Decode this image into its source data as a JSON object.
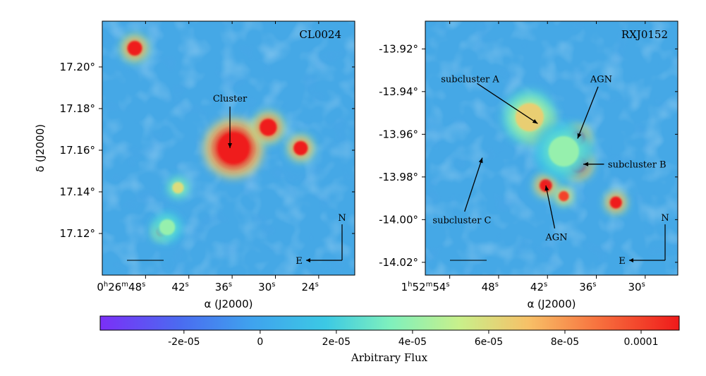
{
  "chart_data": [
    {
      "type": "heatmap",
      "label": "CL0024",
      "xlabel": "α (J2000)",
      "ylabel": "δ (J2000)",
      "xlim_sec": [
        54.0,
        19.0
      ],
      "ylim_deg": [
        17.1,
        17.222
      ],
      "x_ticks": [
        {
          "sec": 48,
          "prefix": "0",
          "h": "h",
          "mid": "26",
          "m": "m",
          "s": "48",
          "sfx": "s"
        },
        {
          "sec": 42,
          "prefix": "",
          "h": "",
          "mid": "",
          "m": "",
          "s": "42",
          "sfx": "s"
        },
        {
          "sec": 36,
          "prefix": "",
          "h": "",
          "mid": "",
          "m": "",
          "s": "36",
          "sfx": "s"
        },
        {
          "sec": 30,
          "prefix": "",
          "h": "",
          "mid": "",
          "m": "",
          "s": "30",
          "sfx": "s"
        },
        {
          "sec": 24,
          "prefix": "",
          "h": "",
          "mid": "",
          "m": "",
          "s": "24",
          "sfx": "s"
        }
      ],
      "y_ticks": [
        {
          "deg": 17.2,
          "label": "17.20°"
        },
        {
          "deg": 17.18,
          "label": "17.18°"
        },
        {
          "deg": 17.16,
          "label": "17.16°"
        },
        {
          "deg": 17.14,
          "label": "17.14°"
        },
        {
          "deg": 17.12,
          "label": "17.12°"
        }
      ],
      "sources": [
        {
          "ra_sec": 49.5,
          "dec": 17.209,
          "flux": 0.00012,
          "size": 0.8
        },
        {
          "ra_sec": 35.8,
          "dec": 17.161,
          "flux": 0.00016,
          "size": 2.3
        },
        {
          "ra_sec": 31.0,
          "dec": 17.171,
          "flux": 0.00013,
          "size": 1.0
        },
        {
          "ra_sec": 26.5,
          "dec": 17.161,
          "flux": 0.00012,
          "size": 0.75
        },
        {
          "ra_sec": 43.5,
          "dec": 17.142,
          "flux": 6e-05,
          "size": 0.5
        },
        {
          "ra_sec": 45.8,
          "dec": 17.121,
          "flux": 9e-05,
          "size": 0.4
        },
        {
          "ra_sec": 45.0,
          "dec": 17.123,
          "flux": 4e-05,
          "size": 0.9
        }
      ],
      "annotations": [
        {
          "text": "Cluster",
          "ra_sec": 36.3,
          "dec": 17.185,
          "arrow_to": {
            "ra_sec": 36.3,
            "dec": 17.161
          }
        }
      ],
      "compass": {
        "n": "N",
        "e": "E"
      }
    },
    {
      "type": "heatmap",
      "label": "RXJ0152",
      "xlabel": "α (J2000)",
      "ylabel": "",
      "xlim_sec": [
        57.0,
        26.0
      ],
      "ylim_deg": [
        -14.026,
        -13.907
      ],
      "x_ticks": [
        {
          "sec": 54,
          "prefix": "1",
          "h": "h",
          "mid": "52",
          "m": "m",
          "s": "54",
          "sfx": "s"
        },
        {
          "sec": 48,
          "prefix": "",
          "h": "",
          "mid": "",
          "m": "",
          "s": "48",
          "sfx": "s"
        },
        {
          "sec": 42,
          "prefix": "",
          "h": "",
          "mid": "",
          "m": "",
          "s": "42",
          "sfx": "s"
        },
        {
          "sec": 36,
          "prefix": "",
          "h": "",
          "mid": "",
          "m": "",
          "s": "36",
          "sfx": "s"
        },
        {
          "sec": 30,
          "prefix": "",
          "h": "",
          "mid": "",
          "m": "",
          "s": "30",
          "sfx": "s"
        }
      ],
      "y_ticks": [
        {
          "deg": -13.92,
          "label": "-13.92°"
        },
        {
          "deg": -13.94,
          "label": "-13.94°"
        },
        {
          "deg": -13.96,
          "label": "-13.96°"
        },
        {
          "deg": -13.98,
          "label": "-13.98°"
        },
        {
          "deg": -14.0,
          "label": "-14.00°"
        },
        {
          "deg": -14.02,
          "label": "-14.02°"
        }
      ],
      "sources": [
        {
          "ra_sec": 43.5,
          "dec": -13.955,
          "flux": 0.00015,
          "size": 1.3
        },
        {
          "ra_sec": 44.2,
          "dec": -13.952,
          "flux": 6.5e-05,
          "size": 2.0
        },
        {
          "ra_sec": 38.3,
          "dec": -13.962,
          "flux": 0.00013,
          "size": 0.8
        },
        {
          "ra_sec": 38.3,
          "dec": -13.974,
          "flux": 0.00014,
          "size": 1.0
        },
        {
          "ra_sec": 42.2,
          "dec": -13.984,
          "flux": 0.00012,
          "size": 0.6
        },
        {
          "ra_sec": 40.0,
          "dec": -13.989,
          "flux": 0.0001,
          "size": 0.4
        },
        {
          "ra_sec": 33.6,
          "dec": -13.992,
          "flux": 0.00012,
          "size": 0.55
        },
        {
          "ra_sec": 40.0,
          "dec": -13.968,
          "flux": 4e-05,
          "size": 2.2
        }
      ],
      "annotations": [
        {
          "text": "subcluster A",
          "ra_sec": 51.5,
          "dec": -13.934,
          "arrow_to": {
            "ra_sec": 43.2,
            "dec": -13.955
          }
        },
        {
          "text": "AGN",
          "ra_sec": 35.4,
          "dec": -13.934,
          "arrow_to": {
            "ra_sec": 38.3,
            "dec": -13.962
          }
        },
        {
          "text": "subcluster B",
          "ra_sec": 31.0,
          "dec": -13.974,
          "arrow_to": {
            "ra_sec": 37.6,
            "dec": -13.974
          }
        },
        {
          "text": "AGN",
          "ra_sec": 40.9,
          "dec": -14.008,
          "arrow_to": {
            "ra_sec": 42.2,
            "dec": -13.984
          }
        },
        {
          "text": "subcluster C",
          "ra_sec": 52.5,
          "dec": -14.0,
          "arrow_to": {
            "ra_sec": 50.0,
            "dec": -13.971
          }
        }
      ],
      "compass": {
        "n": "N",
        "e": "E"
      }
    }
  ],
  "colorbar": {
    "label": "Arbitrary Flux",
    "range": [
      -4.2e-05,
      0.00011
    ],
    "ticks": [
      {
        "value": -2e-05,
        "label": "-2e-05"
      },
      {
        "value": 0,
        "label": "0"
      },
      {
        "value": 2e-05,
        "label": "2e-05"
      },
      {
        "value": 4e-05,
        "label": "4e-05"
      },
      {
        "value": 6e-05,
        "label": "6e-05"
      },
      {
        "value": 8e-05,
        "label": "8e-05"
      },
      {
        "value": 0.0001,
        "label": "0.0001"
      }
    ]
  }
}
